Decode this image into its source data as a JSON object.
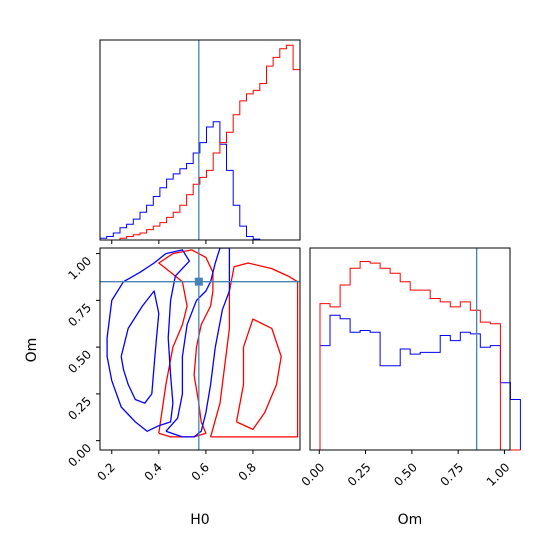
{
  "chart_data": {
    "type": "corner",
    "parameters": [
      "H0",
      "Om"
    ],
    "xlabel_h0": "H0",
    "xlabel_om": "Om",
    "ylabel_om": "Om",
    "h0_ticks": [
      "0.2",
      "0.4",
      "0.6",
      "0.8"
    ],
    "om_ticks": [
      "0.00",
      "0.25",
      "0.50",
      "0.75",
      "1.00"
    ],
    "h0_range": [
      0.15,
      1.0
    ],
    "om_range": [
      -0.05,
      1.03
    ],
    "truth": {
      "H0": 0.57,
      "Om": 0.85
    },
    "colors": {
      "blue": "#0000ff",
      "red": "#ff0000",
      "truth": "#4682b4"
    },
    "histograms": {
      "H0": {
        "bin_start": 0.15,
        "bin_width": 0.0283,
        "blue": [
          0.01,
          0.02,
          0.04,
          0.07,
          0.09,
          0.12,
          0.16,
          0.2,
          0.25,
          0.3,
          0.35,
          0.38,
          0.41,
          0.44,
          0.5,
          0.56,
          0.65,
          0.68,
          0.55,
          0.4,
          0.2,
          0.08,
          0.02,
          0.005,
          0,
          0,
          0,
          0,
          0,
          0
        ],
        "red": [
          0,
          0,
          0,
          0.01,
          0.02,
          0.03,
          0.04,
          0.06,
          0.08,
          0.1,
          0.13,
          0.16,
          0.2,
          0.26,
          0.32,
          0.36,
          0.4,
          0.5,
          0.56,
          0.62,
          0.72,
          0.8,
          0.84,
          0.86,
          0.9,
          1.0,
          1.05,
          1.1,
          1.12,
          0.98
        ]
      },
      "Om": {
        "bin_start": -0.05,
        "bin_width": 0.0541,
        "blue": [
          0,
          0.62,
          0.8,
          0.78,
          0.7,
          0.71,
          0.7,
          0.5,
          0.5,
          0.6,
          0.57,
          0.58,
          0.58,
          0.68,
          0.65,
          0.7,
          0.69,
          0.61,
          0.62,
          0.4,
          0.3
        ],
        "red": [
          0,
          0.87,
          0.85,
          0.98,
          1.08,
          1.12,
          1.11,
          1.08,
          1.05,
          1.0,
          0.95,
          0.95,
          0.9,
          0.88,
          0.85,
          0.88,
          0.83,
          0.76,
          0.75,
          0.0,
          0.0
        ]
      }
    },
    "contours": {
      "blue": [
        [
          [
            0.18,
            0.55
          ],
          [
            0.2,
            0.75
          ],
          [
            0.25,
            0.85
          ],
          [
            0.32,
            0.9
          ],
          [
            0.38,
            0.95
          ],
          [
            0.43,
            1.0
          ],
          [
            0.5,
            1.02
          ],
          [
            0.53,
            0.96
          ],
          [
            0.47,
            0.88
          ],
          [
            0.45,
            0.75
          ],
          [
            0.44,
            0.55
          ],
          [
            0.45,
            0.35
          ],
          [
            0.46,
            0.2
          ],
          [
            0.45,
            0.1
          ],
          [
            0.4,
            0.08
          ],
          [
            0.35,
            0.05
          ],
          [
            0.3,
            0.1
          ],
          [
            0.24,
            0.18
          ],
          [
            0.2,
            0.32
          ],
          [
            0.18,
            0.45
          ],
          [
            0.18,
            0.55
          ]
        ],
        [
          [
            0.24,
            0.45
          ],
          [
            0.27,
            0.6
          ],
          [
            0.33,
            0.72
          ],
          [
            0.38,
            0.8
          ],
          [
            0.4,
            0.68
          ],
          [
            0.39,
            0.55
          ],
          [
            0.38,
            0.4
          ],
          [
            0.37,
            0.25
          ],
          [
            0.34,
            0.2
          ],
          [
            0.3,
            0.22
          ],
          [
            0.27,
            0.3
          ],
          [
            0.25,
            0.38
          ],
          [
            0.24,
            0.45
          ]
        ],
        [
          [
            0.43,
            0.05
          ],
          [
            0.48,
            0.12
          ],
          [
            0.5,
            0.25
          ],
          [
            0.5,
            0.45
          ],
          [
            0.52,
            0.62
          ],
          [
            0.56,
            0.75
          ],
          [
            0.6,
            0.8
          ],
          [
            0.62,
            0.85
          ],
          [
            0.64,
            0.95
          ],
          [
            0.66,
            1.03
          ],
          [
            0.7,
            1.03
          ],
          [
            0.7,
            0.8
          ],
          [
            0.67,
            0.7
          ],
          [
            0.64,
            0.5
          ],
          [
            0.62,
            0.3
          ],
          [
            0.6,
            0.15
          ],
          [
            0.58,
            0.05
          ],
          [
            0.55,
            0.02
          ],
          [
            0.5,
            0.02
          ],
          [
            0.43,
            0.05
          ]
        ]
      ],
      "red": [
        [
          [
            0.4,
            0.04
          ],
          [
            0.43,
            0.3
          ],
          [
            0.46,
            0.5
          ],
          [
            0.5,
            0.62
          ],
          [
            0.52,
            0.72
          ],
          [
            0.5,
            0.85
          ],
          [
            0.45,
            0.9
          ],
          [
            0.4,
            0.95
          ],
          [
            0.46,
            1.0
          ],
          [
            0.54,
            1.02
          ],
          [
            0.6,
            0.98
          ],
          [
            0.63,
            0.9
          ],
          [
            0.63,
            0.8
          ],
          [
            0.62,
            0.72
          ],
          [
            0.58,
            0.62
          ],
          [
            0.56,
            0.5
          ],
          [
            0.55,
            0.35
          ],
          [
            0.57,
            0.2
          ],
          [
            0.58,
            0.1
          ],
          [
            0.6,
            0.04
          ],
          [
            0.55,
            0.02
          ],
          [
            0.45,
            0.02
          ],
          [
            0.4,
            0.04
          ]
        ],
        [
          [
            0.62,
            0.02
          ],
          [
            0.66,
            0.2
          ],
          [
            0.68,
            0.4
          ],
          [
            0.7,
            0.6
          ],
          [
            0.7,
            0.8
          ],
          [
            0.72,
            0.93
          ],
          [
            0.78,
            0.95
          ],
          [
            0.88,
            0.92
          ],
          [
            0.95,
            0.88
          ],
          [
            0.99,
            0.85
          ],
          [
            0.99,
            0.02
          ],
          [
            0.62,
            0.02
          ]
        ],
        [
          [
            0.73,
            0.1
          ],
          [
            0.76,
            0.3
          ],
          [
            0.76,
            0.5
          ],
          [
            0.8,
            0.65
          ],
          [
            0.88,
            0.6
          ],
          [
            0.92,
            0.45
          ],
          [
            0.9,
            0.3
          ],
          [
            0.85,
            0.15
          ],
          [
            0.8,
            0.06
          ],
          [
            0.73,
            0.1
          ]
        ]
      ]
    }
  }
}
